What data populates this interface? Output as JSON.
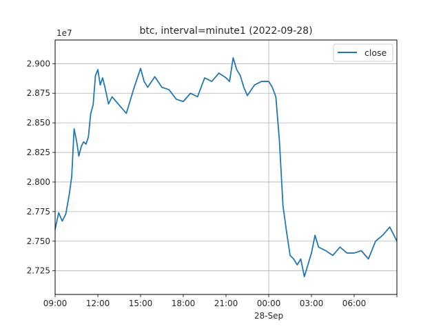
{
  "chart_data": {
    "type": "line",
    "title": "btc, interval=minute1 (2022-09-28)",
    "offset_text": "1e7",
    "xlabel": "",
    "ylabel": "",
    "x_tick_labels": [
      "09:00",
      "12:00",
      "15:00",
      "18:00",
      "21:00",
      "00:00",
      "03:00",
      "06:00"
    ],
    "x_date_label": "28-Sep",
    "xlim": [
      "2022-09-27 09:00",
      "2022-09-28 09:00"
    ],
    "y_tick_labels": [
      "2.725",
      "2.750",
      "2.775",
      "2.800",
      "2.825",
      "2.850",
      "2.875",
      "2.900"
    ],
    "ylim": [
      2.705,
      2.92
    ],
    "y_unit_multiplier": 10000000,
    "grid": true,
    "legend_position": "top-right",
    "series": [
      {
        "name": "close",
        "color": "#1f77b4",
        "x": [
          "2022-09-27 09:00",
          "2022-09-27 09:15",
          "2022-09-27 09:30",
          "2022-09-27 09:45",
          "2022-09-27 10:00",
          "2022-09-27 10:10",
          "2022-09-27 10:20",
          "2022-09-27 10:30",
          "2022-09-27 10:40",
          "2022-09-27 10:50",
          "2022-09-27 11:00",
          "2022-09-27 11:10",
          "2022-09-27 11:20",
          "2022-09-27 11:30",
          "2022-09-27 11:40",
          "2022-09-27 11:50",
          "2022-09-27 12:00",
          "2022-09-27 12:10",
          "2022-09-27 12:20",
          "2022-09-27 12:30",
          "2022-09-27 12:45",
          "2022-09-27 13:00",
          "2022-09-27 13:30",
          "2022-09-27 14:00",
          "2022-09-27 14:30",
          "2022-09-27 15:00",
          "2022-09-27 15:15",
          "2022-09-27 15:30",
          "2022-09-27 16:00",
          "2022-09-27 16:30",
          "2022-09-27 17:00",
          "2022-09-27 17:30",
          "2022-09-27 18:00",
          "2022-09-27 18:30",
          "2022-09-27 19:00",
          "2022-09-27 19:30",
          "2022-09-27 20:00",
          "2022-09-27 20:30",
          "2022-09-27 21:00",
          "2022-09-27 21:15",
          "2022-09-27 21:30",
          "2022-09-27 21:45",
          "2022-09-27 22:00",
          "2022-09-27 22:15",
          "2022-09-27 22:30",
          "2022-09-27 23:00",
          "2022-09-27 23:30",
          "2022-09-28 00:00",
          "2022-09-28 00:15",
          "2022-09-28 00:30",
          "2022-09-28 00:45",
          "2022-09-28 01:00",
          "2022-09-28 01:15",
          "2022-09-28 01:30",
          "2022-09-28 01:45",
          "2022-09-28 02:00",
          "2022-09-28 02:15",
          "2022-09-28 02:30",
          "2022-09-28 02:45",
          "2022-09-28 03:00",
          "2022-09-28 03:15",
          "2022-09-28 03:30",
          "2022-09-28 04:00",
          "2022-09-28 04:30",
          "2022-09-28 05:00",
          "2022-09-28 05:30",
          "2022-09-28 06:00",
          "2022-09-28 06:30",
          "2022-09-28 07:00",
          "2022-09-28 07:30",
          "2022-09-28 08:00",
          "2022-09-28 08:30",
          "2022-09-28 09:00"
        ],
        "values": [
          2.76,
          2.774,
          2.767,
          2.773,
          2.79,
          2.805,
          2.845,
          2.835,
          2.822,
          2.83,
          2.834,
          2.832,
          2.838,
          2.858,
          2.865,
          2.89,
          2.895,
          2.882,
          2.888,
          2.88,
          2.866,
          2.872,
          2.865,
          2.858,
          2.878,
          2.896,
          2.885,
          2.88,
          2.889,
          2.88,
          2.878,
          2.87,
          2.868,
          2.875,
          2.872,
          2.888,
          2.885,
          2.892,
          2.888,
          2.885,
          2.905,
          2.895,
          2.89,
          2.88,
          2.873,
          2.882,
          2.885,
          2.885,
          2.88,
          2.872,
          2.835,
          2.78,
          2.758,
          2.738,
          2.735,
          2.73,
          2.735,
          2.72,
          2.73,
          2.74,
          2.755,
          2.745,
          2.742,
          2.738,
          2.745,
          2.74,
          2.74,
          2.742,
          2.735,
          2.75,
          2.755,
          2.762,
          2.75
        ]
      }
    ]
  }
}
